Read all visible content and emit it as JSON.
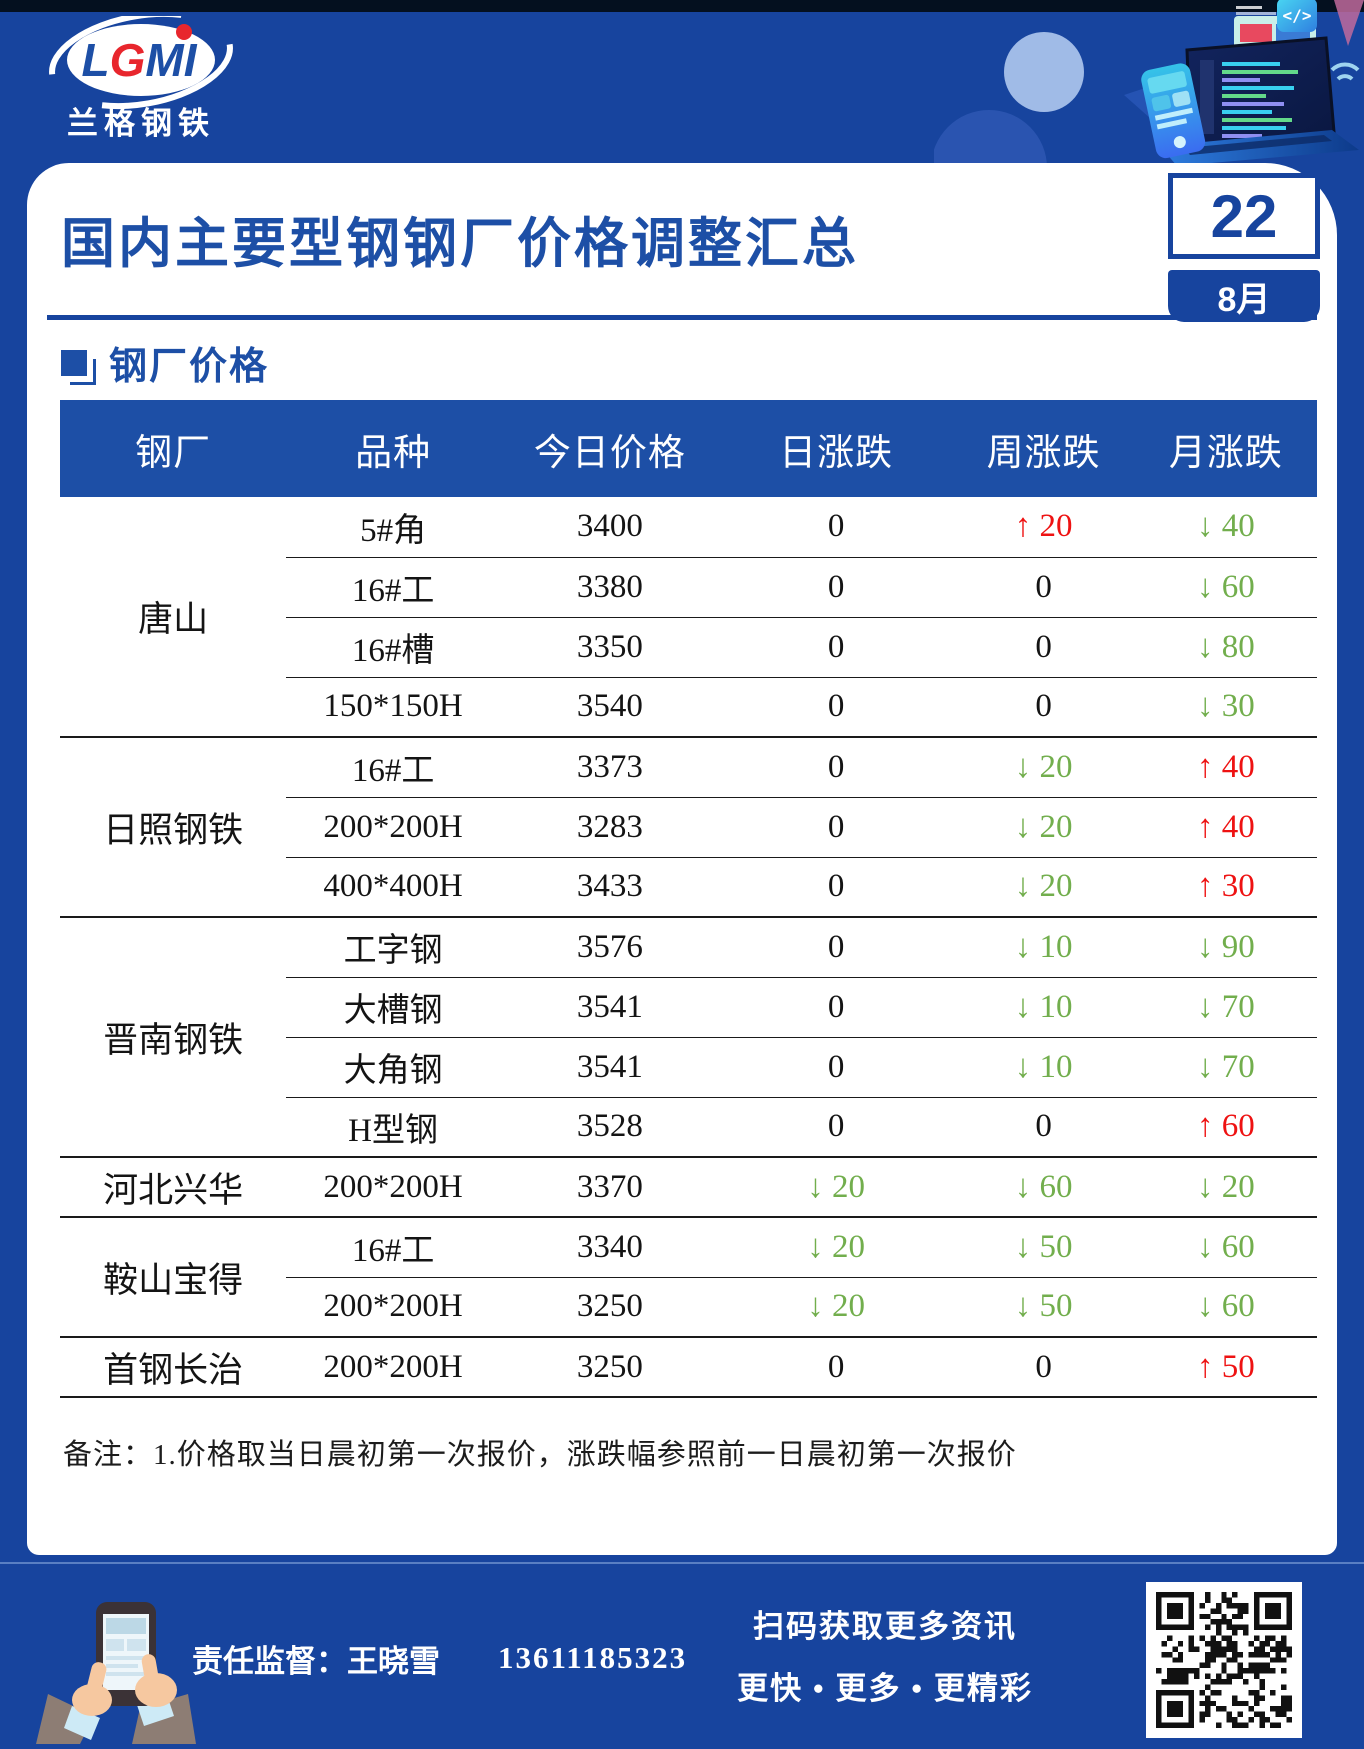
{
  "colors": {
    "page_blue": "#17449E",
    "accent_blue": "#1D4FA6",
    "up_red": "#EE1212",
    "down_green": "#72AE4D"
  },
  "logo": {
    "part1": "L",
    "part2": "G",
    "part3": "MI",
    "company": "兰格钢铁"
  },
  "header": {
    "title": "国内主要型钢钢厂价格调整汇总",
    "day": "22",
    "month": "8月"
  },
  "section": {
    "title": "钢厂价格"
  },
  "icons": {
    "up_arrow": "↑",
    "down_arrow": "↓",
    "code_badge": "</>"
  },
  "table": {
    "columns": [
      "钢厂",
      "品种",
      "今日价格",
      "日涨跌",
      "周涨跌",
      "月涨跌"
    ],
    "groups": [
      {
        "mill": "唐山",
        "rows": [
          {
            "variety": "5#角",
            "price": "3400",
            "day": {
              "dir": "flat",
              "val": "0"
            },
            "week": {
              "dir": "up",
              "val": "20"
            },
            "month": {
              "dir": "down",
              "val": "40"
            }
          },
          {
            "variety": "16#工",
            "price": "3380",
            "day": {
              "dir": "flat",
              "val": "0"
            },
            "week": {
              "dir": "flat",
              "val": "0"
            },
            "month": {
              "dir": "down",
              "val": "60"
            }
          },
          {
            "variety": "16#槽",
            "price": "3350",
            "day": {
              "dir": "flat",
              "val": "0"
            },
            "week": {
              "dir": "flat",
              "val": "0"
            },
            "month": {
              "dir": "down",
              "val": "80"
            }
          },
          {
            "variety": "150*150H",
            "price": "3540",
            "day": {
              "dir": "flat",
              "val": "0"
            },
            "week": {
              "dir": "flat",
              "val": "0"
            },
            "month": {
              "dir": "down",
              "val": "30"
            }
          }
        ]
      },
      {
        "mill": "日照钢铁",
        "rows": [
          {
            "variety": "16#工",
            "price": "3373",
            "day": {
              "dir": "flat",
              "val": "0"
            },
            "week": {
              "dir": "down",
              "val": "20"
            },
            "month": {
              "dir": "up",
              "val": "40"
            }
          },
          {
            "variety": "200*200H",
            "price": "3283",
            "day": {
              "dir": "flat",
              "val": "0"
            },
            "week": {
              "dir": "down",
              "val": "20"
            },
            "month": {
              "dir": "up",
              "val": "40"
            }
          },
          {
            "variety": "400*400H",
            "price": "3433",
            "day": {
              "dir": "flat",
              "val": "0"
            },
            "week": {
              "dir": "down",
              "val": "20"
            },
            "month": {
              "dir": "up",
              "val": "30"
            }
          }
        ]
      },
      {
        "mill": "晋南钢铁",
        "rows": [
          {
            "variety": "工字钢",
            "price": "3576",
            "day": {
              "dir": "flat",
              "val": "0"
            },
            "week": {
              "dir": "down",
              "val": "10"
            },
            "month": {
              "dir": "down",
              "val": "90"
            }
          },
          {
            "variety": "大槽钢",
            "price": "3541",
            "day": {
              "dir": "flat",
              "val": "0"
            },
            "week": {
              "dir": "down",
              "val": "10"
            },
            "month": {
              "dir": "down",
              "val": "70"
            }
          },
          {
            "variety": "大角钢",
            "price": "3541",
            "day": {
              "dir": "flat",
              "val": "0"
            },
            "week": {
              "dir": "down",
              "val": "10"
            },
            "month": {
              "dir": "down",
              "val": "70"
            }
          },
          {
            "variety": "H型钢",
            "price": "3528",
            "day": {
              "dir": "flat",
              "val": "0"
            },
            "week": {
              "dir": "flat",
              "val": "0"
            },
            "month": {
              "dir": "up",
              "val": "60"
            }
          }
        ]
      },
      {
        "mill": "河北兴华",
        "rows": [
          {
            "variety": "200*200H",
            "price": "3370",
            "day": {
              "dir": "down",
              "val": "20"
            },
            "week": {
              "dir": "down",
              "val": "60"
            },
            "month": {
              "dir": "down",
              "val": "20"
            }
          }
        ]
      },
      {
        "mill": "鞍山宝得",
        "rows": [
          {
            "variety": "16#工",
            "price": "3340",
            "day": {
              "dir": "down",
              "val": "20"
            },
            "week": {
              "dir": "down",
              "val": "50"
            },
            "month": {
              "dir": "down",
              "val": "60"
            }
          },
          {
            "variety": "200*200H",
            "price": "3250",
            "day": {
              "dir": "down",
              "val": "20"
            },
            "week": {
              "dir": "down",
              "val": "50"
            },
            "month": {
              "dir": "down",
              "val": "60"
            }
          }
        ]
      },
      {
        "mill": "首钢长治",
        "rows": [
          {
            "variety": "200*200H",
            "price": "3250",
            "day": {
              "dir": "flat",
              "val": "0"
            },
            "week": {
              "dir": "flat",
              "val": "0"
            },
            "month": {
              "dir": "up",
              "val": "50"
            }
          }
        ]
      }
    ]
  },
  "footnote": {
    "text": "备注：1.价格取当日晨初第一次报价，涨跌幅参照前一日晨初第一次报价"
  },
  "footer": {
    "supervisor": "责任监督：王晓雪",
    "phone": "13611185323",
    "qr_line1": "扫码获取更多资讯",
    "qr_line2": "更快 • 更多 • 更精彩"
  }
}
